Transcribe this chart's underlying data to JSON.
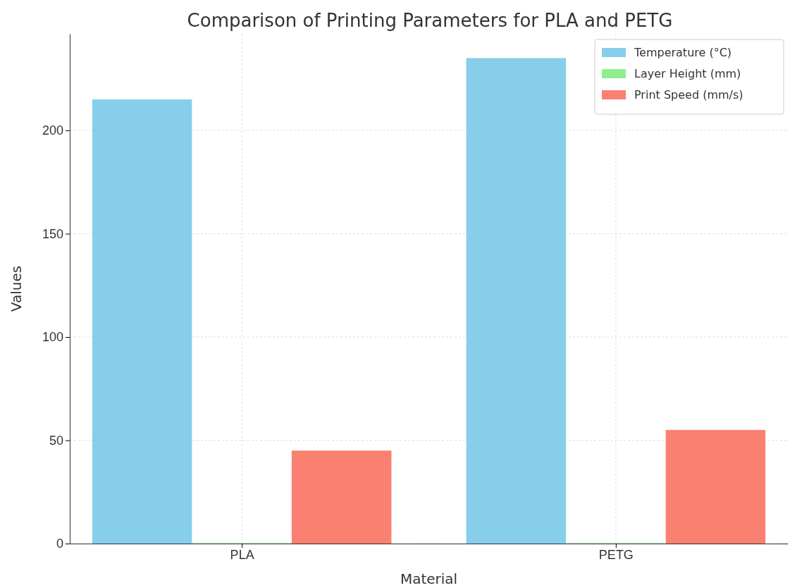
{
  "chart_data": {
    "type": "bar",
    "title": "Comparison of Printing Parameters for PLA and PETG",
    "xlabel": "Material",
    "ylabel": "Values",
    "categories": [
      "PLA",
      "PETG"
    ],
    "series": [
      {
        "name": "Temperature (°C)",
        "color": "#87ceeb",
        "values": [
          215,
          235
        ]
      },
      {
        "name": "Layer Height (mm)",
        "color": "#90ee90",
        "values": [
          0.2,
          0.2
        ]
      },
      {
        "name": "Print Speed (mm/s)",
        "color": "#fa8072",
        "values": [
          45,
          55
        ]
      }
    ],
    "ylim": [
      0,
      246.75
    ],
    "yticks": [
      0,
      50,
      100,
      150,
      200
    ],
    "grid": true,
    "legend": "top right"
  }
}
